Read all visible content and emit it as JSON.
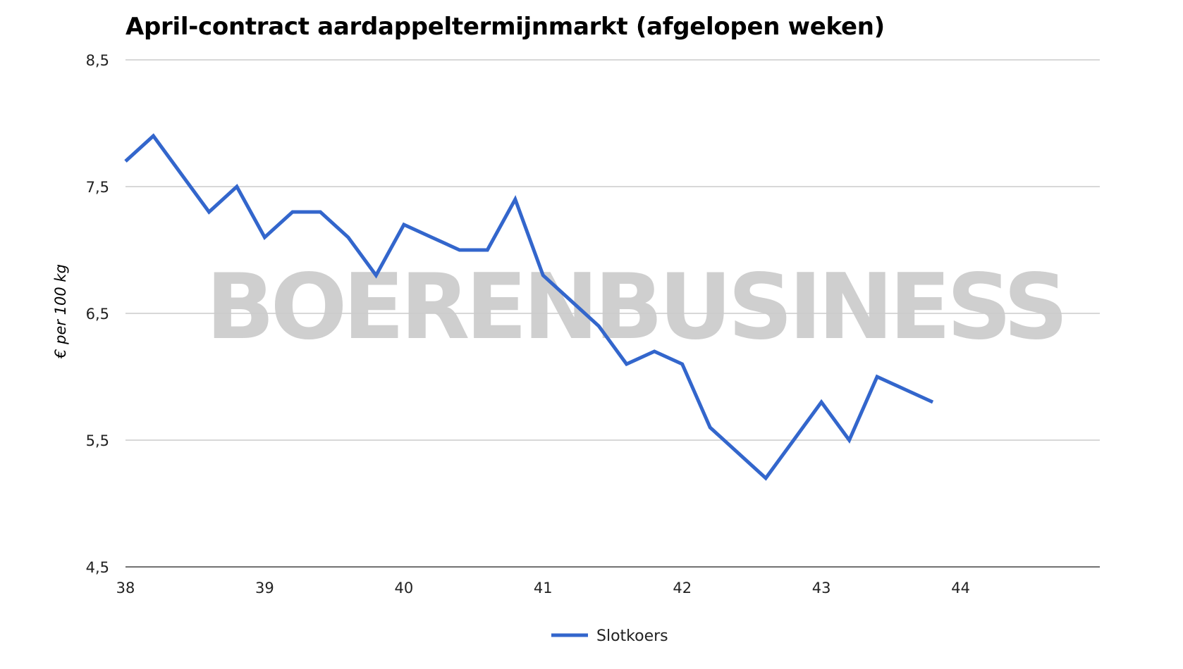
{
  "title": "April-contract aardappeltermijnmarkt (afgelopen weken)",
  "watermark": "BOERENBUSINESS",
  "chart_data": {
    "type": "line",
    "title": "April-contract aardappeltermijnmarkt (afgelopen weken)",
    "xlabel": "",
    "ylabel": "€ per 100 kg",
    "xlim": [
      38,
      45
    ],
    "ylim": [
      4.5,
      8.5
    ],
    "x_ticks": [
      38,
      39,
      40,
      41,
      42,
      43,
      44
    ],
    "x_tick_labels": [
      "38",
      "39",
      "40",
      "41",
      "42",
      "43",
      "44"
    ],
    "y_ticks": [
      4.5,
      5.5,
      6.5,
      7.5,
      8.5
    ],
    "y_tick_labels": [
      "4,5",
      "5,5",
      "6,5",
      "7,5",
      "8,5"
    ],
    "grid": true,
    "legend_position": "bottom",
    "series": [
      {
        "name": "Slotkoers",
        "color": "#3366cc",
        "x": [
          38.0,
          38.2,
          38.4,
          38.6,
          38.8,
          39.0,
          39.2,
          39.4,
          39.6,
          39.8,
          40.0,
          40.2,
          40.4,
          40.6,
          40.8,
          41.0,
          41.2,
          41.4,
          41.6,
          41.8,
          42.0,
          42.2,
          42.4,
          42.6,
          42.8,
          43.0,
          43.2,
          43.4,
          43.6,
          43.8
        ],
        "values": [
          7.7,
          7.9,
          7.6,
          7.3,
          7.5,
          7.1,
          7.3,
          7.3,
          7.1,
          6.8,
          7.2,
          7.1,
          7.0,
          7.0,
          7.4,
          6.8,
          6.6,
          6.4,
          6.1,
          6.2,
          6.1,
          5.6,
          5.4,
          5.2,
          5.5,
          5.8,
          5.5,
          6.0,
          5.9,
          5.8
        ]
      }
    ]
  }
}
